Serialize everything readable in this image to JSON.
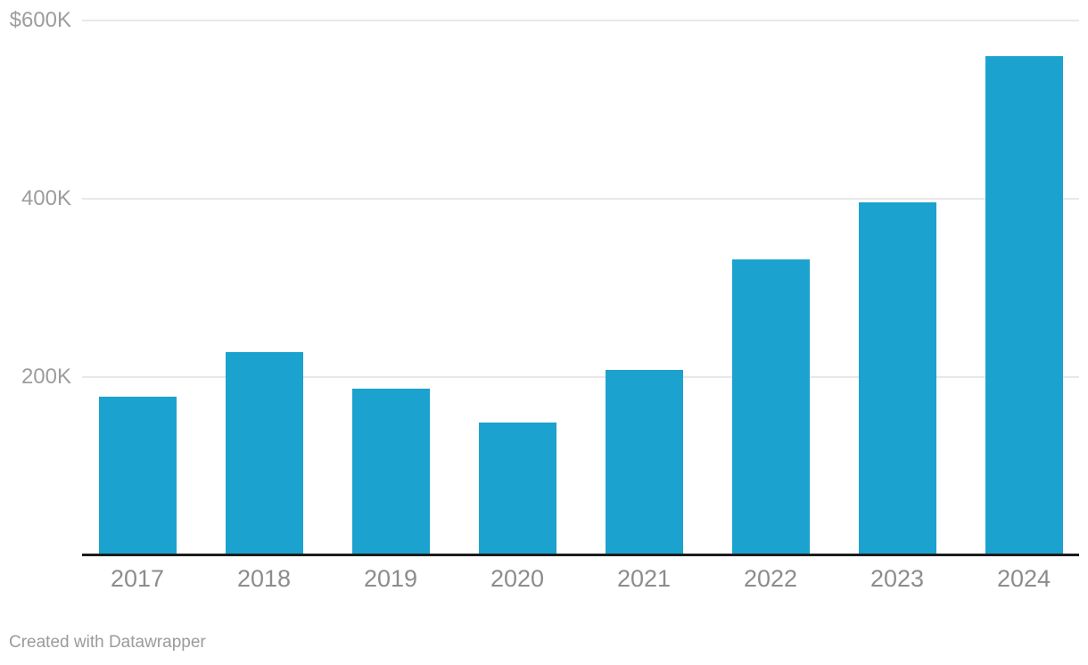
{
  "page": {
    "background": "#ffffff",
    "footer": {
      "text": "Created with Datawrapper"
    }
  },
  "colors": {
    "bar": "#1CA2CE",
    "gridline": "#e8e8e8",
    "axis_line": "#1c1c1c",
    "y_tick_label": "#9d9d9d",
    "x_tick_label": "#8c8c8c",
    "footer_text": "#9b9b9b"
  },
  "chart_data": {
    "type": "bar",
    "title": "",
    "xlabel": "",
    "ylabel": "",
    "categories": [
      "2017",
      "2018",
      "2019",
      "2020",
      "2021",
      "2022",
      "2023",
      "2024"
    ],
    "values": [
      177000,
      227000,
      186000,
      148000,
      207000,
      331000,
      395000,
      560000
    ],
    "unit": "USD",
    "ylim": [
      0,
      600000
    ],
    "yticks": [
      {
        "value": 600000,
        "label": "$600K"
      },
      {
        "value": 400000,
        "label": "400K"
      },
      {
        "value": 200000,
        "label": "200K"
      }
    ],
    "grid": "horizontal",
    "legend": "none"
  }
}
